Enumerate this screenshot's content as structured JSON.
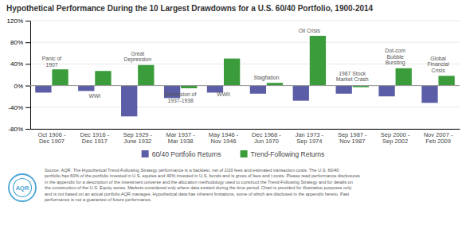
{
  "chart_data": {
    "type": "bar",
    "title": "Hypothetical Performance During the 10 Largest Drawdowns for a U.S. 60/40 Portfolio, 1900-2014",
    "categories": [
      "Oct 1906 -\nDec 1907",
      "Dec 1916 -\nDec 1917",
      "Sep 1929 -\nJune 1932",
      "Mar 1937 -\nMar 1938",
      "May 1946 -\nNov 1946",
      "Dec 1968 -\nJun 1970",
      "Jan 1973 -\nSep 1974",
      "Sep 1987 -\nNov 1987",
      "Sep 2000 -\nSep 2002",
      "Nov 2007 -\nFeb 2009"
    ],
    "series": [
      {
        "name": "60/40 Portfolio Returns",
        "color": "#5b5ea6",
        "values": [
          -13,
          -10,
          -57,
          -23,
          -13,
          -15,
          -28,
          -15,
          -20,
          -32
        ]
      },
      {
        "name": "Trend-Following Returns",
        "color": "#3a9c3a",
        "values": [
          30,
          27,
          38,
          -5,
          50,
          5,
          92,
          -3,
          32,
          18
        ]
      }
    ],
    "ylim": [
      -80,
      120
    ],
    "yticks": [
      {
        "value": -80,
        "label": "-80%"
      },
      {
        "value": -40,
        "label": "-40%"
      },
      {
        "value": 0,
        "label": "0%"
      },
      {
        "value": 40,
        "label": "40%"
      },
      {
        "value": 80,
        "label": "80%"
      },
      {
        "value": 120,
        "label": "120%"
      }
    ],
    "grid": true,
    "legend": "bottom",
    "annotations": [
      {
        "text": "Panic of\n1907",
        "x": "Oct 1906 -\nDec 1907",
        "y": 32
      },
      {
        "text": "WWI",
        "x": "Dec 1916 -\nDec 1917",
        "y": -26
      },
      {
        "text": "Great\nDepression",
        "x": "Sep 1929 -\nJune 1932",
        "y": 42
      },
      {
        "text": "Recession of\n1937-1938",
        "x": "Mar 1937 -\nMar 1938",
        "y": -34
      },
      {
        "text": "WWII",
        "x": "May 1946 -\nNov 1946",
        "y": -22
      },
      {
        "text": "Stagflation",
        "x": "Dec 1968 -\nJun 1970",
        "y": 8
      },
      {
        "text": "Oil Crisis",
        "x": "Jan 1973 -\nSep 1974",
        "y": 95
      },
      {
        "text": "1987 Stock\nMarket Crash",
        "x": "Sep 1987 -\nNov 1987",
        "y": 5
      },
      {
        "text": "Dot-com\nBubble\nBursting",
        "x": "Sep 2000 -\nSep 2002",
        "y": 36
      },
      {
        "text": "Global\nFinancial\nCrisis",
        "x": "Nov 2007 -\nFeb 2009",
        "y": 22
      },
      {
        "text": "Source: AQR. The Hypothetical Trend-Following Strategy performance is a backtest, net of 2/20 fees and estimated transaction costs. The U.S. 60/40\nportfolio has 60% of the portfolio invested in U.S. equites and 40% invested in U.S. bonds and is gross of fees and t costs. Please read performance disclosures\nin the appendix for a description of the investment universe and the allocation methodology used to construct the Trend-Following Strategy and for details on\nthe construction of the U.S. Equity series. Markets considered only where data existed during the time period. Chart is provided for illustrative purposes only\nand is not based on an actual portfolio AQR manages. Hypothetical data has inherent limitations, some of which are disclosed in the appendix hereto. Past\nperformance is not a guarantee of future performance."
      },
      {
        "text": "AQR"
      }
    ]
  }
}
